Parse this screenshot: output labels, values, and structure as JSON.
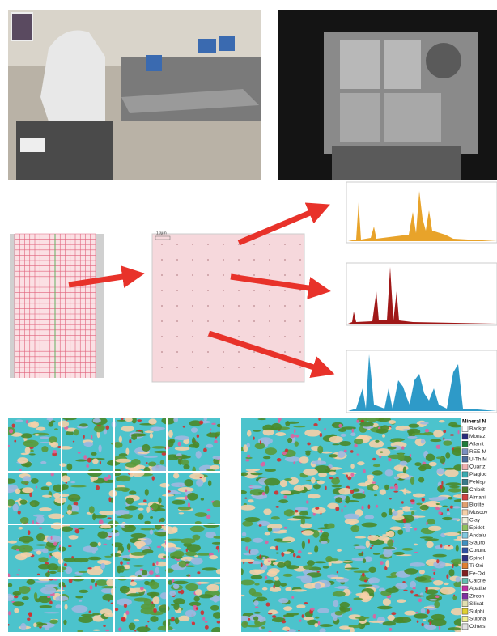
{
  "scale_label": "10μm",
  "legend": {
    "title": "Mineral N",
    "items": [
      {
        "label": "Backgr",
        "color": "#ffffff"
      },
      {
        "label": "Monaz",
        "color": "#2a2a7a"
      },
      {
        "label": "Allanit",
        "color": "#1e7a3a"
      },
      {
        "label": "REE-M",
        "color": "#7a8fc0"
      },
      {
        "label": "U-Th M",
        "color": "#4a6a9a"
      },
      {
        "label": "Quartz",
        "color": "#f0b0b0"
      },
      {
        "label": "Plagioc",
        "color": "#3aaab0"
      },
      {
        "label": "Feldsp",
        "color": "#3a7a8a"
      },
      {
        "label": "Chlorit",
        "color": "#4a7a2a"
      },
      {
        "label": "Almani",
        "color": "#d04040"
      },
      {
        "label": "Biotite",
        "color": "#e0a070"
      },
      {
        "label": "Muscov",
        "color": "#f5d0a8"
      },
      {
        "label": "Clay",
        "color": "#f0f0e0"
      },
      {
        "label": "Epidot",
        "color": "#90c060"
      },
      {
        "label": "Andalu",
        "color": "#80c8e0"
      },
      {
        "label": "Stauro",
        "color": "#4090c0"
      },
      {
        "label": "Corund",
        "color": "#3050a0"
      },
      {
        "label": "Spinel",
        "color": "#303080"
      },
      {
        "label": "Ti-Oxi",
        "color": "#e08030"
      },
      {
        "label": "Fe-Oxi",
        "color": "#802020"
      },
      {
        "label": "Calcite",
        "color": "#60c0b0"
      },
      {
        "label": "Apatite",
        "color": "#c030a0"
      },
      {
        "label": "Zircon",
        "color": "#8030a0"
      },
      {
        "label": "Silicat",
        "color": "#e0e0b0"
      },
      {
        "label": "Sulphi",
        "color": "#e0d030"
      },
      {
        "label": "Sulpha",
        "color": "#f0f090"
      },
      {
        "label": "Others",
        "color": "#e0e0e0"
      }
    ]
  }
}
